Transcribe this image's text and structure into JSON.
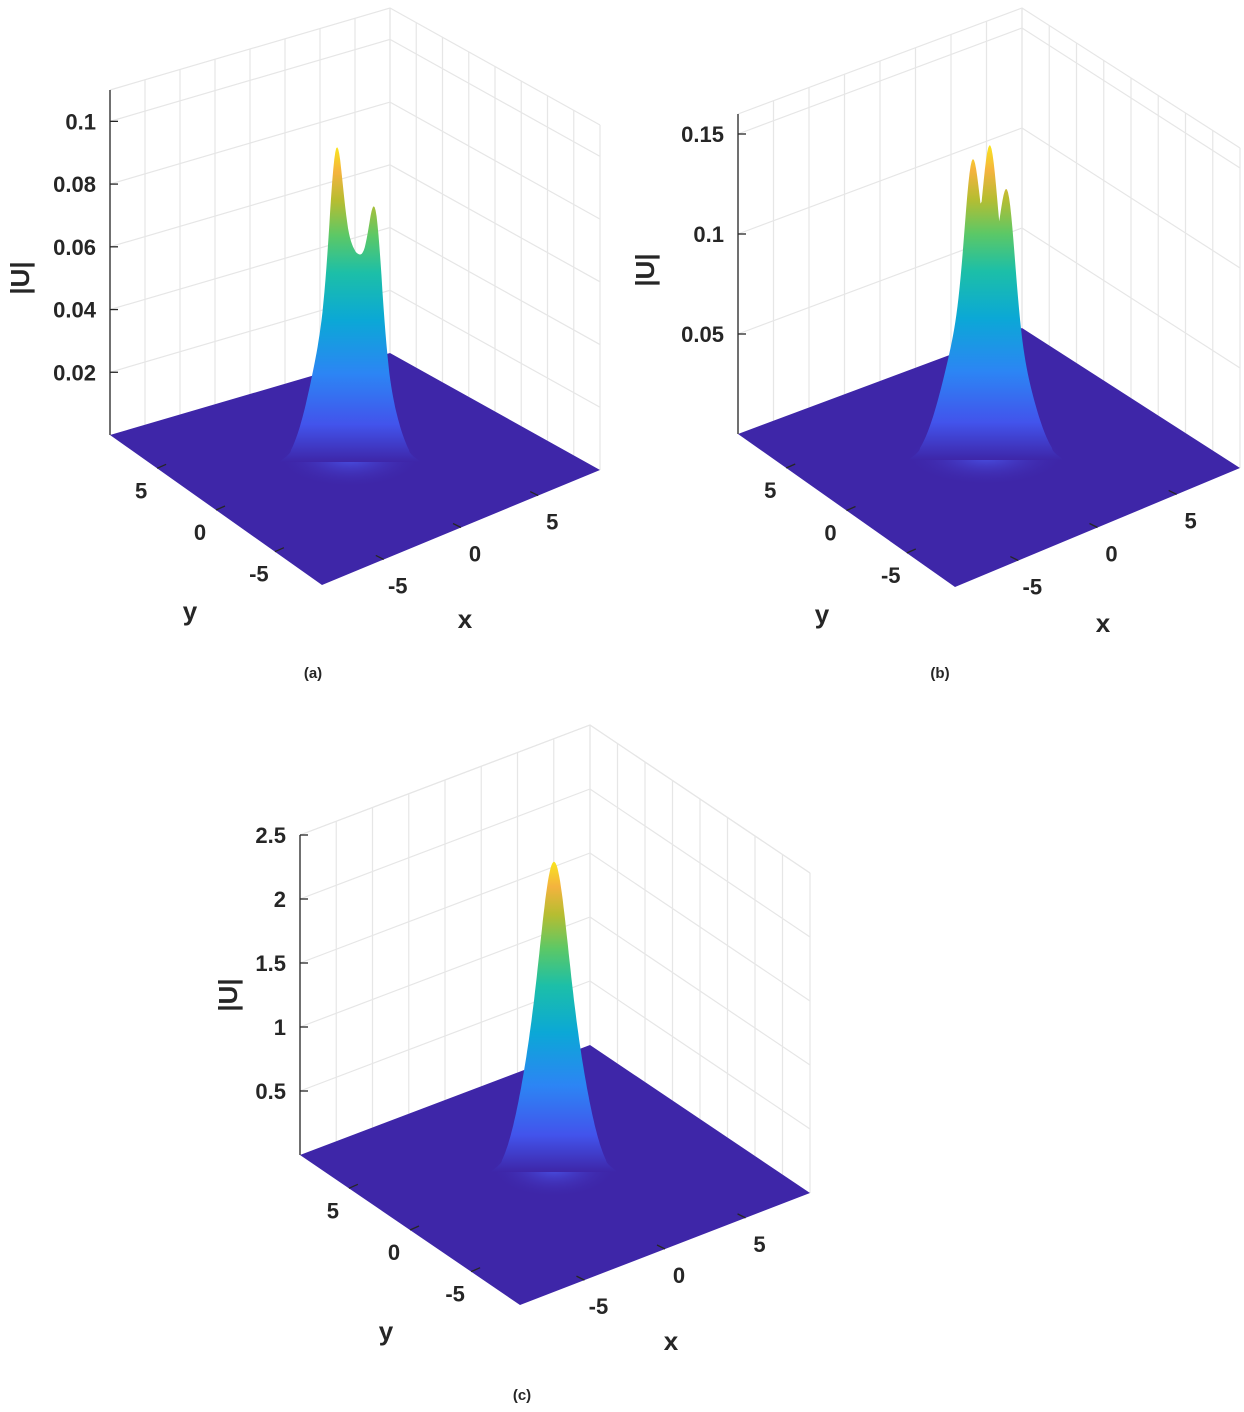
{
  "chart_data": [
    {
      "type": "surface",
      "caption": "(a)",
      "xlabel": "x",
      "ylabel": "y",
      "zlabel": "|U|",
      "xlim": [
        -9,
        9
      ],
      "ylim": [
        -9,
        9
      ],
      "zlim": [
        0,
        0.11
      ],
      "xticks": [
        -5,
        0,
        5
      ],
      "yticks": [
        -5,
        0,
        5
      ],
      "zticks": [
        0.02,
        0.04,
        0.06,
        0.08,
        0.1
      ],
      "xtick_labels": [
        "-5",
        "0",
        "5"
      ],
      "ytick_labels": [
        "-5",
        "0",
        "5"
      ],
      "ztick_labels": [
        "0.02",
        "0.04",
        "0.06",
        "0.08",
        "0.1"
      ],
      "peak_value": 0.103,
      "grid": true,
      "colormap": "parula"
    },
    {
      "type": "surface",
      "caption": "(b)",
      "xlabel": "x",
      "ylabel": "y",
      "zlabel": "|U|",
      "xlim": [
        -9,
        9
      ],
      "ylim": [
        -9,
        9
      ],
      "zlim": [
        0,
        0.16
      ],
      "xticks": [
        -5,
        0,
        5
      ],
      "yticks": [
        -5,
        0,
        5
      ],
      "zticks": [
        0.05,
        0.1,
        0.15
      ],
      "xtick_labels": [
        "-5",
        "0",
        "5"
      ],
      "ytick_labels": [
        "-5",
        "0",
        "5"
      ],
      "ztick_labels": [
        "0.05",
        "0.1",
        "0.15"
      ],
      "peak_value": 0.152,
      "grid": true,
      "colormap": "parula"
    },
    {
      "type": "surface",
      "caption": "(c)",
      "xlabel": "x",
      "ylabel": "y",
      "zlabel": "|U|",
      "xlim": [
        -9,
        9
      ],
      "ylim": [
        -9,
        9
      ],
      "zlim": [
        0,
        2.5
      ],
      "xticks": [
        -5,
        0,
        5
      ],
      "yticks": [
        -5,
        0,
        5
      ],
      "zticks": [
        0.5,
        1,
        1.5,
        2,
        2.5
      ],
      "xtick_labels": [
        "-5",
        "0",
        "5"
      ],
      "ytick_labels": [
        "-5",
        "0",
        "5"
      ],
      "ztick_labels": [
        "0.5",
        "1",
        "1.5",
        "2",
        "2.5"
      ],
      "peak_value": 2.33,
      "grid": true,
      "colormap": "parula"
    }
  ]
}
